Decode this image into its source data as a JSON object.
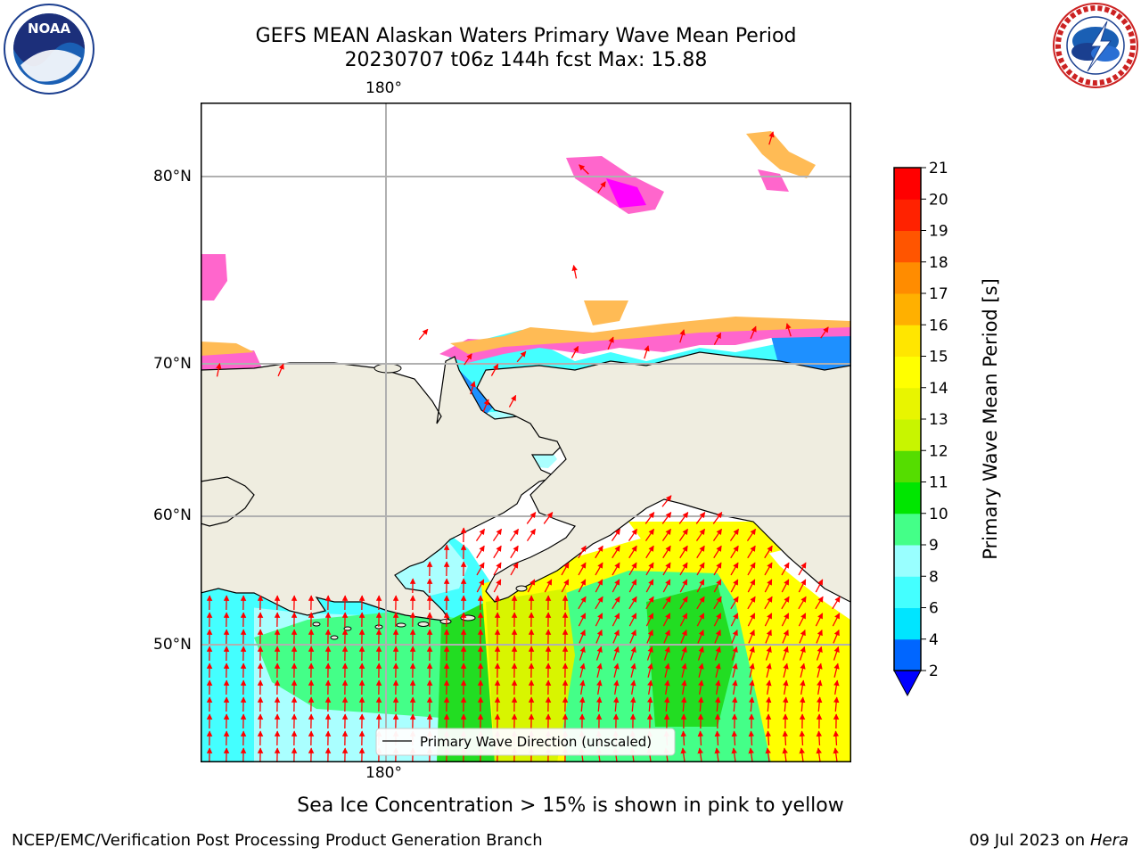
{
  "title_line1": "GEFS MEAN Alaskan Waters Primary Wave Mean Period",
  "title_line2": "20230707 t06z 144h fcst   Max: 15.88",
  "lon_label_top": "180°",
  "lon_label_bottom": "180°",
  "lat_labels": [
    "80°N",
    "70°N",
    "60°N",
    "50°N"
  ],
  "legend_text": "Primary Wave Direction (unscaled)",
  "colorbar": {
    "label": "Primary Wave Mean Period [s]",
    "ticks": [
      "2",
      "4",
      "6",
      "8",
      "9",
      "10",
      "11",
      "12",
      "13",
      "14",
      "15",
      "16",
      "17",
      "18",
      "19",
      "20",
      "21"
    ],
    "colors": [
      "#0066ff",
      "#00e5ff",
      "#44ffff",
      "#99ffff",
      "#44ff88",
      "#00e600",
      "#55dd00",
      "#c8f500",
      "#e8f500",
      "#ffff00",
      "#ffe600",
      "#ffb000",
      "#ff8c00",
      "#ff5500",
      "#ff2200",
      "#ff0000"
    ],
    "extend_color": "#0000ff"
  },
  "ice_note": "Sea Ice Concentration > 15% is shown in pink to yellow",
  "footer_left": "NCEP/EMC/Verification Post Processing Product Generation Branch",
  "footer_date": "09 Jul 2023 on ",
  "footer_machine": "Hera",
  "logo_left_text": "NOAA",
  "colors": {
    "land": "#efede0",
    "ocean_light": "#aaffff",
    "ocean_cyan": "#44ffff",
    "ocean_green": "#44ff88",
    "ocean_darkgreen": "#22dd22",
    "ocean_yellow": "#ffff00",
    "ocean_yellowgreen": "#d8f500",
    "ice_pink": "#ff66cc",
    "ice_orange": "#ffbb55",
    "arrow": "#ff0000"
  }
}
